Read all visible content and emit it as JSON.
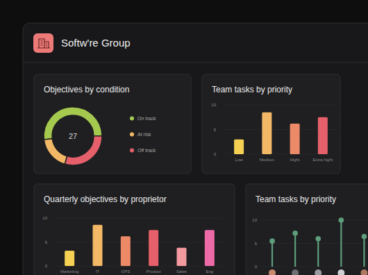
{
  "header": {
    "title": "Softw're Group"
  },
  "chart_data": [
    {
      "type": "donut",
      "title": "Objectives by condition",
      "total": 27,
      "categories": [
        "On track",
        "At risk",
        "Off track"
      ],
      "values": [
        14,
        5,
        8
      ],
      "colors": [
        "#a5c94f",
        "#f2b866",
        "#e5606a"
      ],
      "legend": "right"
    },
    {
      "type": "bar",
      "title": "Team tasks by priority",
      "categories": [
        "Low",
        "Medium",
        "Hight",
        "Extra hight"
      ],
      "values": [
        3,
        8.5,
        6.2,
        7.5
      ],
      "colors": [
        "#f5d052",
        "#f2b866",
        "#ec8a68",
        "#e5606a"
      ],
      "ylim": [
        0,
        10
      ],
      "yticks": [
        0,
        5,
        10
      ],
      "grid": true
    },
    {
      "type": "bar",
      "title": "Quarterly objectives by proprietor",
      "categories": [
        "Marketing",
        "IT",
        "OPS",
        "Product",
        "Sales",
        "Eng"
      ],
      "values": [
        3.2,
        8.6,
        6.2,
        7.5,
        3.8,
        7.5
      ],
      "colors": [
        "#f5d052",
        "#f2b866",
        "#ec8a68",
        "#e5606a",
        "#f29aa0",
        "#ec6aa8"
      ],
      "ylim": [
        0,
        10
      ],
      "yticks": [
        0,
        5,
        10
      ],
      "grid": true
    },
    {
      "type": "lollipop",
      "title": "Team tasks by priority",
      "categories": [
        null,
        null,
        null,
        null,
        null
      ],
      "values": [
        5.5,
        7.2,
        6,
        10,
        6.5
      ],
      "color": "#5e9e7c",
      "marker": "circle",
      "ylim": [
        0,
        10
      ],
      "yticks": [
        0,
        5,
        10
      ],
      "grid": true
    }
  ]
}
